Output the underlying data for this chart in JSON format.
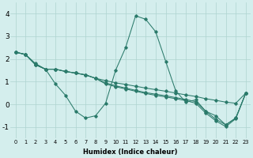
{
  "xlabel": "Humidex (Indice chaleur)",
  "x": [
    0,
    1,
    2,
    3,
    4,
    5,
    6,
    7,
    8,
    9,
    10,
    11,
    12,
    13,
    14,
    15,
    16,
    17,
    18,
    19,
    20,
    21,
    22,
    23
  ],
  "s_zigzag": [
    2.3,
    2.2,
    1.8,
    1.55,
    0.9,
    0.4,
    -0.3,
    -0.6,
    -0.5,
    0.05,
    1.5,
    2.5,
    3.9,
    3.75,
    3.2,
    1.9,
    0.6,
    0.1,
    0.2,
    -0.3,
    -0.5,
    -0.9,
    -0.6,
    0.5
  ],
  "s_gentle1": [
    2.3,
    2.2,
    1.75,
    1.55,
    1.55,
    1.45,
    1.38,
    1.3,
    1.15,
    1.05,
    0.95,
    0.88,
    0.8,
    0.72,
    0.65,
    0.58,
    0.5,
    0.42,
    0.35,
    0.25,
    0.18,
    0.1,
    0.05,
    0.5
  ],
  "s_gentle2": [
    2.3,
    2.2,
    1.75,
    1.55,
    1.55,
    1.45,
    1.38,
    1.3,
    1.15,
    0.95,
    0.82,
    0.72,
    0.62,
    0.52,
    0.45,
    0.38,
    0.3,
    0.22,
    0.12,
    -0.3,
    -0.65,
    -0.9,
    -0.6,
    0.5
  ],
  "s_gentle3": [
    2.3,
    2.2,
    1.75,
    1.55,
    1.55,
    1.45,
    1.38,
    1.3,
    1.15,
    0.9,
    0.78,
    0.68,
    0.58,
    0.48,
    0.4,
    0.33,
    0.25,
    0.17,
    0.05,
    -0.38,
    -0.72,
    -0.98,
    -0.63,
    0.5
  ],
  "line_color": "#2a7a6a",
  "bg_color": "#d4eeed",
  "grid_color": "#aed4d0",
  "ylim": [
    -1.5,
    4.5
  ],
  "xlim": [
    -0.5,
    23.5
  ],
  "yticks": [
    -1,
    0,
    1,
    2,
    3,
    4
  ],
  "xticks": [
    0,
    1,
    2,
    3,
    4,
    5,
    6,
    7,
    8,
    9,
    10,
    11,
    12,
    13,
    14,
    15,
    16,
    17,
    18,
    19,
    20,
    21,
    22,
    23
  ]
}
